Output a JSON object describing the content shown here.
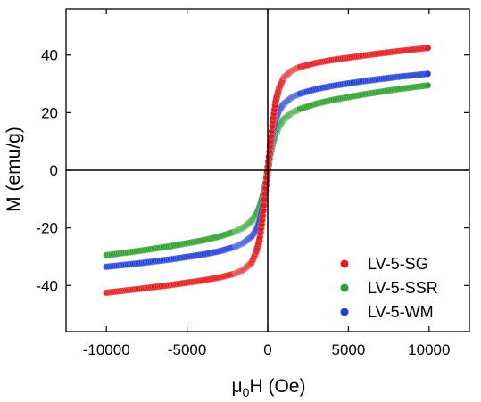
{
  "chart_data": {
    "type": "scatter",
    "title": "",
    "xlabel": {
      "prefix": "μ",
      "sub": "0",
      "suffix": "H (Oe)"
    },
    "ylabel": "M (emu/g)",
    "xlim": [
      -12500,
      12500
    ],
    "ylim": [
      -56,
      56
    ],
    "xticks": [
      -10000,
      -5000,
      0,
      5000,
      10000
    ],
    "xtick_labels": [
      "-10000",
      "-5000",
      "0",
      "5000",
      "10000"
    ],
    "yticks": [
      -40,
      -20,
      0,
      20,
      40
    ],
    "ytick_labels": [
      "-40",
      "-20",
      "0",
      "20",
      "40"
    ],
    "zero_lines": true,
    "grid": false,
    "legend_position": "bottom-right",
    "series": [
      {
        "name": "LV-5-SG",
        "color": "#e31a1c",
        "Ms": 42.5,
        "branch_descending": [
          [
            10000,
            42.5
          ],
          [
            8000,
            41.2
          ],
          [
            6000,
            39.8
          ],
          [
            4000,
            38.2
          ],
          [
            3000,
            37.2
          ],
          [
            2000,
            35.8
          ],
          [
            1500,
            34.5
          ],
          [
            1000,
            32.0
          ],
          [
            700,
            28.0
          ],
          [
            500,
            23.5
          ],
          [
            300,
            15.0
          ],
          [
            150,
            6.5
          ],
          [
            0,
            -1.5
          ],
          [
            -150,
            -9.0
          ],
          [
            -300,
            -16.5
          ],
          [
            -500,
            -24.5
          ],
          [
            -700,
            -28.5
          ],
          [
            -1000,
            -32.3
          ],
          [
            -1500,
            -34.6
          ],
          [
            -2000,
            -35.9
          ],
          [
            -3000,
            -37.3
          ],
          [
            -4000,
            -38.3
          ],
          [
            -6000,
            -39.9
          ],
          [
            -8000,
            -41.3
          ],
          [
            -10000,
            -42.5
          ]
        ],
        "branch_ascending": [
          [
            -10000,
            -42.5
          ],
          [
            -8000,
            -41.2
          ],
          [
            -6000,
            -39.8
          ],
          [
            -4000,
            -38.2
          ],
          [
            -3000,
            -37.2
          ],
          [
            -2000,
            -35.8
          ],
          [
            -1500,
            -34.5
          ],
          [
            -1000,
            -32.0
          ],
          [
            -700,
            -28.0
          ],
          [
            -500,
            -23.5
          ],
          [
            -300,
            -15.0
          ],
          [
            -150,
            -6.5
          ],
          [
            0,
            1.5
          ],
          [
            150,
            9.0
          ],
          [
            300,
            16.5
          ],
          [
            500,
            24.5
          ],
          [
            700,
            28.5
          ],
          [
            1000,
            32.3
          ],
          [
            1500,
            34.6
          ],
          [
            2000,
            35.9
          ],
          [
            3000,
            37.3
          ],
          [
            4000,
            38.3
          ],
          [
            6000,
            39.9
          ],
          [
            8000,
            41.3
          ],
          [
            10000,
            42.5
          ]
        ]
      },
      {
        "name": "LV-5-SSR",
        "color": "#2ca02c",
        "Ms": 29.5,
        "branch_descending": [
          [
            10000,
            29.5
          ],
          [
            8000,
            28.0
          ],
          [
            6000,
            26.3
          ],
          [
            4000,
            24.3
          ],
          [
            3000,
            23.0
          ],
          [
            2000,
            21.2
          ],
          [
            1500,
            19.8
          ],
          [
            1000,
            17.5
          ],
          [
            700,
            15.0
          ],
          [
            500,
            12.5
          ],
          [
            300,
            8.5
          ],
          [
            150,
            4.5
          ],
          [
            0,
            -0.8
          ],
          [
            -150,
            -5.5
          ],
          [
            -300,
            -9.5
          ],
          [
            -500,
            -13.3
          ],
          [
            -700,
            -15.6
          ],
          [
            -1000,
            -17.9
          ],
          [
            -1500,
            -20.0
          ],
          [
            -2000,
            -21.3
          ],
          [
            -3000,
            -23.1
          ],
          [
            -4000,
            -24.4
          ],
          [
            -6000,
            -26.4
          ],
          [
            -8000,
            -28.1
          ],
          [
            -10000,
            -29.5
          ]
        ],
        "branch_ascending": [
          [
            -10000,
            -29.5
          ],
          [
            -8000,
            -28.0
          ],
          [
            -6000,
            -26.3
          ],
          [
            -4000,
            -24.3
          ],
          [
            -3000,
            -23.0
          ],
          [
            -2000,
            -21.2
          ],
          [
            -1500,
            -19.8
          ],
          [
            -1000,
            -17.5
          ],
          [
            -700,
            -15.0
          ],
          [
            -500,
            -12.5
          ],
          [
            -300,
            -8.5
          ],
          [
            -150,
            -4.5
          ],
          [
            0,
            0.8
          ],
          [
            150,
            5.5
          ],
          [
            300,
            9.5
          ],
          [
            500,
            13.3
          ],
          [
            700,
            15.6
          ],
          [
            1000,
            17.9
          ],
          [
            1500,
            20.0
          ],
          [
            2000,
            21.3
          ],
          [
            3000,
            23.1
          ],
          [
            4000,
            24.4
          ],
          [
            6000,
            26.4
          ],
          [
            8000,
            28.1
          ],
          [
            10000,
            29.5
          ]
        ]
      },
      {
        "name": "LV-5-WM",
        "color": "#1f3fd6",
        "Ms": 33.5,
        "branch_descending": [
          [
            10000,
            33.5
          ],
          [
            8000,
            32.3
          ],
          [
            6000,
            30.9
          ],
          [
            4000,
            29.2
          ],
          [
            3000,
            28.1
          ],
          [
            2000,
            26.5
          ],
          [
            1500,
            25.2
          ],
          [
            1000,
            23.0
          ],
          [
            700,
            20.5
          ],
          [
            500,
            17.5
          ],
          [
            300,
            12.0
          ],
          [
            150,
            6.0
          ],
          [
            0,
            -1.0
          ],
          [
            -150,
            -7.0
          ],
          [
            -300,
            -12.8
          ],
          [
            -500,
            -18.0
          ],
          [
            -700,
            -20.8
          ],
          [
            -1000,
            -23.2
          ],
          [
            -1500,
            -25.3
          ],
          [
            -2000,
            -26.6
          ],
          [
            -3000,
            -28.2
          ],
          [
            -4000,
            -29.3
          ],
          [
            -6000,
            -31.0
          ],
          [
            -8000,
            -32.4
          ],
          [
            -10000,
            -33.5
          ]
        ],
        "branch_ascending": [
          [
            -10000,
            -33.5
          ],
          [
            -8000,
            -32.3
          ],
          [
            -6000,
            -30.9
          ],
          [
            -4000,
            -29.2
          ],
          [
            -3000,
            -28.1
          ],
          [
            -2000,
            -26.5
          ],
          [
            -1500,
            -25.2
          ],
          [
            -1000,
            -23.0
          ],
          [
            -700,
            -20.5
          ],
          [
            -500,
            -17.5
          ],
          [
            -300,
            -12.0
          ],
          [
            -150,
            -6.0
          ],
          [
            0,
            1.0
          ],
          [
            150,
            7.0
          ],
          [
            300,
            12.8
          ],
          [
            500,
            18.0
          ],
          [
            700,
            20.8
          ],
          [
            1000,
            23.2
          ],
          [
            1500,
            25.3
          ],
          [
            2000,
            26.6
          ],
          [
            3000,
            28.2
          ],
          [
            4000,
            29.3
          ],
          [
            6000,
            31.0
          ],
          [
            8000,
            32.4
          ],
          [
            10000,
            33.5
          ]
        ]
      }
    ]
  }
}
